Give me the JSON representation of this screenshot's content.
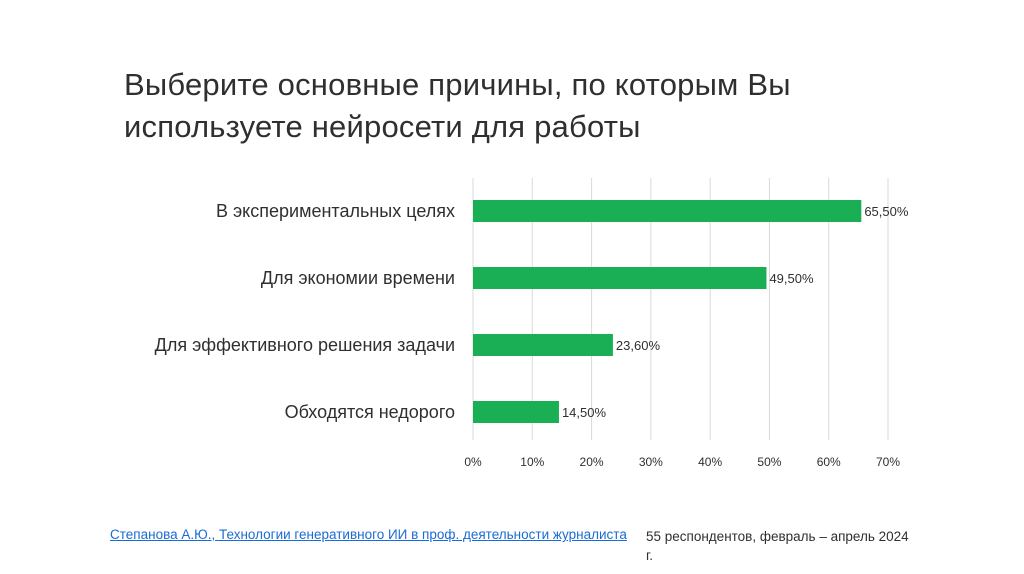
{
  "slide": {
    "title": "Выберите основные причины, по которым Вы используете нейросети для работы",
    "footer_link": "Степанова А.Ю., Технологии генеративного ИИ в проф. деятельности журналиста",
    "footer_note": "55 респондентов, февраль – апрель 2024 г."
  },
  "colors": {
    "bar": "#1aaf54",
    "grid": "#d9d9d9",
    "text": "#2f2f2f"
  },
  "chart_data": {
    "type": "bar",
    "orientation": "horizontal",
    "categories": [
      "В экспериментальных целях",
      "Для экономии времени",
      "Для эффективного решения задачи",
      "Обходятся недорого"
    ],
    "values": [
      65.5,
      49.5,
      23.6,
      14.5
    ],
    "value_labels": [
      "65,50%",
      "49,50%",
      "23,60%",
      "14,50%"
    ],
    "xlim": [
      0,
      70
    ],
    "xticks": [
      0,
      10,
      20,
      30,
      40,
      50,
      60,
      70
    ],
    "xtick_labels": [
      "0%",
      "10%",
      "20%",
      "30%",
      "40%",
      "50%",
      "60%",
      "70%"
    ],
    "grid": true,
    "legend": "none"
  }
}
